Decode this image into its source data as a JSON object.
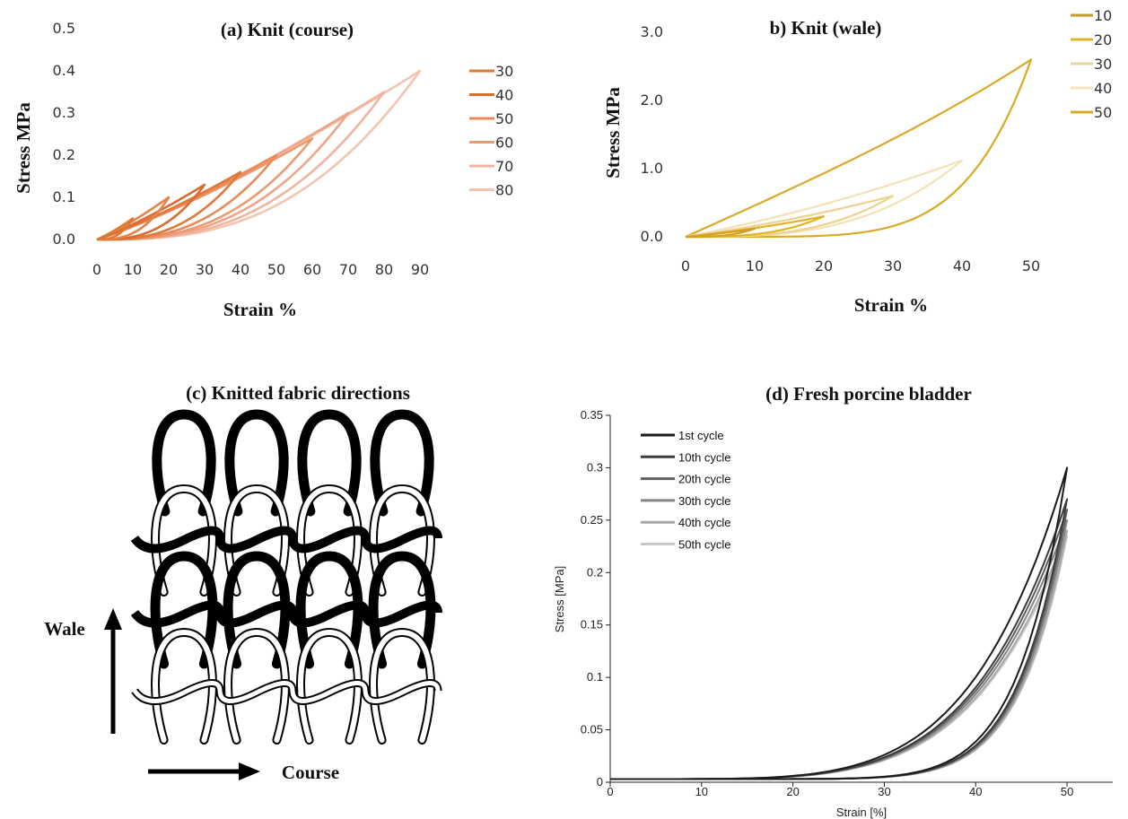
{
  "chart_data": [
    {
      "panel": "a",
      "type": "line",
      "title": "(a) Knit (course)",
      "xlabel": "Strain %",
      "ylabel": "Stress MPa",
      "xlim": [
        0,
        90
      ],
      "ylim": [
        0,
        0.5
      ],
      "xticks": [
        "0",
        "10",
        "20",
        "30",
        "40",
        "50",
        "60",
        "70",
        "80",
        "90"
      ],
      "yticks": [
        "0.0",
        "0.1",
        "0.2",
        "0.3",
        "0.4",
        "0.5"
      ],
      "grid": false,
      "legend_position": "right",
      "legend": [
        "30",
        "40",
        "50",
        "60",
        "70",
        "80"
      ],
      "series": [
        {
          "max_strain": 10,
          "peak_stress": 0.05,
          "color": "#e07a30"
        },
        {
          "max_strain": 20,
          "peak_stress": 0.1,
          "color": "#e4834a"
        },
        {
          "max_strain": 30,
          "peak_stress": 0.13,
          "color": "#d86d30"
        },
        {
          "max_strain": 40,
          "peak_stress": 0.16,
          "color": "#e07a3a"
        },
        {
          "max_strain": 50,
          "peak_stress": 0.2,
          "color": "#e98a5a"
        },
        {
          "max_strain": 60,
          "peak_stress": 0.24,
          "color": "#ec9a70"
        },
        {
          "max_strain": 70,
          "peak_stress": 0.3,
          "color": "#efa688"
        },
        {
          "max_strain": 80,
          "peak_stress": 0.35,
          "color": "#f1b49c"
        },
        {
          "max_strain": 90,
          "peak_stress": 0.4,
          "color": "#f4c4b0"
        }
      ],
      "legend_colors": [
        "#e07a30",
        "#d86d30",
        "#e98a5a",
        "#ec9a70",
        "#f1b49c",
        "#f4c4b0"
      ]
    },
    {
      "panel": "b",
      "type": "line",
      "title": "b) Knit (wale)",
      "xlabel": "Strain %",
      "ylabel": "Stress MPa",
      "xlim": [
        0,
        50
      ],
      "ylim": [
        0,
        3.0
      ],
      "xticks": [
        "0",
        "10",
        "20",
        "30",
        "40",
        "50"
      ],
      "yticks": [
        "0.0",
        "1.0",
        "2.0",
        "3.0"
      ],
      "grid": false,
      "legend_position": "top-right",
      "legend": [
        "10",
        "20",
        "30",
        "40",
        "50"
      ],
      "series": [
        {
          "max_strain": 10,
          "peak_stress": 0.12,
          "color": "#d4a020"
        },
        {
          "max_strain": 20,
          "peak_stress": 0.3,
          "color": "#e2b422"
        },
        {
          "max_strain": 30,
          "peak_stress": 0.6,
          "color": "#edd290"
        },
        {
          "max_strain": 40,
          "peak_stress": 1.12,
          "color": "#f3e2b4"
        },
        {
          "max_strain": 50,
          "peak_stress": 2.6,
          "color": "#d9aa28"
        }
      ],
      "legend_colors": [
        "#c99a2a",
        "#e2b422",
        "#eed49a",
        "#f4e3bd",
        "#d9aa28"
      ]
    },
    {
      "panel": "d",
      "type": "line",
      "title": "(d) Fresh porcine bladder",
      "xlabel": "Strain [%]",
      "ylabel": "Stress [MPa]",
      "xlim": [
        0,
        55
      ],
      "ylim": [
        0,
        0.35
      ],
      "xticks": [
        "0",
        "10",
        "20",
        "30",
        "40",
        "50"
      ],
      "yticks": [
        "0",
        "0.05",
        "0.1",
        "0.15",
        "0.2",
        "0.25",
        "0.3",
        "0.35"
      ],
      "grid": false,
      "legend_position": "top-left",
      "legend": [
        "1st cycle",
        "10th cycle",
        "20th cycle",
        "30th cycle",
        "40th cycle",
        "50th cycle"
      ],
      "series": [
        {
          "name": "1st cycle",
          "max_strain": 50,
          "peak_stress": 0.3,
          "color": "#1a1a1a"
        },
        {
          "name": "10th cycle",
          "max_strain": 50,
          "peak_stress": 0.27,
          "color": "#3c3c3c"
        },
        {
          "name": "20th cycle",
          "max_strain": 50,
          "peak_stress": 0.26,
          "color": "#5f5f5f"
        },
        {
          "name": "30th cycle",
          "max_strain": 50,
          "peak_stress": 0.25,
          "color": "#858585"
        },
        {
          "name": "40th cycle",
          "max_strain": 50,
          "peak_stress": 0.24,
          "color": "#a8a8a8"
        },
        {
          "name": "50th cycle",
          "max_strain": 50,
          "peak_stress": 0.235,
          "color": "#c8c8c8"
        }
      ]
    }
  ],
  "panel_c": {
    "title": "(c) Knitted fabric directions",
    "wale_label": "Wale",
    "course_label": "Course"
  }
}
